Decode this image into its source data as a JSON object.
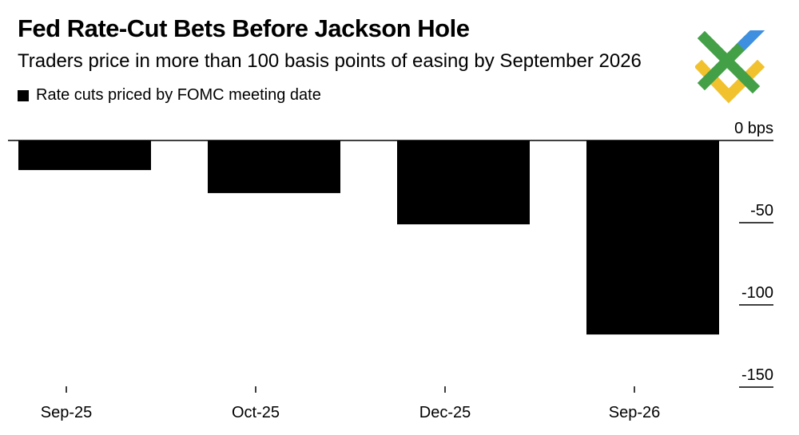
{
  "chart_data": {
    "type": "bar",
    "title": "Fed Rate-Cut Bets Before Jackson Hole",
    "subtitle": "Traders price in more than 100 basis points of easing by September 2026",
    "legend": [
      "Rate cuts priced by FOMC meeting date"
    ],
    "legend_position": "top-left",
    "categories": [
      "Sep-25",
      "Oct-25",
      "Dec-25",
      "Sep-26"
    ],
    "series": [
      {
        "name": "Rate cuts priced by FOMC meeting date",
        "values": [
          -18,
          -32,
          -51,
          -118
        ]
      }
    ],
    "y_ticks": [
      0,
      -50,
      -100,
      -150
    ],
    "y_tick_labels": [
      "0 bps",
      "-50",
      "-100",
      "-150"
    ],
    "ylim": [
      -150,
      0
    ],
    "xlabel": "",
    "ylabel": "",
    "bar_color": "#000000",
    "gridline_color": "#000000"
  },
  "logo": {
    "colors": {
      "green": "#43a047",
      "blue": "#3f8fe0",
      "yellow": "#f2c12e"
    }
  }
}
